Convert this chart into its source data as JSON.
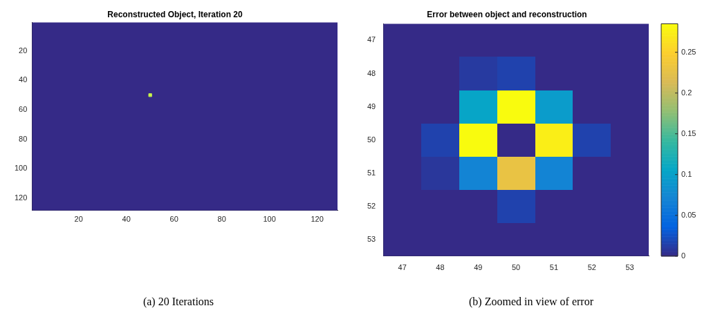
{
  "chart_data": [
    {
      "type": "scatter",
      "title": "Reconstructed Object, Iteration 20",
      "x": [
        50
      ],
      "values": [
        50
      ],
      "color": "#c8f54a",
      "marker": "square",
      "xlim": [
        0.5,
        128.5
      ],
      "ylim": [
        128.5,
        0.5
      ],
      "xticks": [
        20,
        40,
        60,
        80,
        100,
        120
      ],
      "yticks": [
        20,
        40,
        60,
        80,
        100,
        120
      ],
      "annotations": [
        "(a) 20 Iterations"
      ]
    },
    {
      "type": "heatmap",
      "title": "Error between object and reconstruction",
      "categories": [
        "47",
        "48",
        "49",
        "50",
        "51",
        "52",
        "53"
      ],
      "y_categories": [
        "47",
        "48",
        "49",
        "50",
        "51",
        "52",
        "53"
      ],
      "cells": [
        [
          0,
          0,
          0,
          0,
          0,
          0,
          0
        ],
        [
          0,
          0,
          0.01,
          0.015,
          0,
          0,
          0
        ],
        [
          0,
          0,
          0.105,
          0.285,
          0.095,
          0,
          0
        ],
        [
          0,
          0.015,
          0.285,
          0,
          0.275,
          0.015,
          0
        ],
        [
          0,
          0.008,
          0.07,
          0.23,
          0.07,
          0,
          0
        ],
        [
          0,
          0,
          0,
          0.015,
          0,
          0,
          0
        ],
        [
          0,
          0,
          0,
          0,
          0,
          0,
          0
        ]
      ],
      "clim": [
        0,
        0.285
      ],
      "cticks": [
        0,
        0.05,
        0.1,
        0.15,
        0.2,
        0.25
      ],
      "annotations": [
        "(b) Zoomed in view of error"
      ]
    }
  ]
}
